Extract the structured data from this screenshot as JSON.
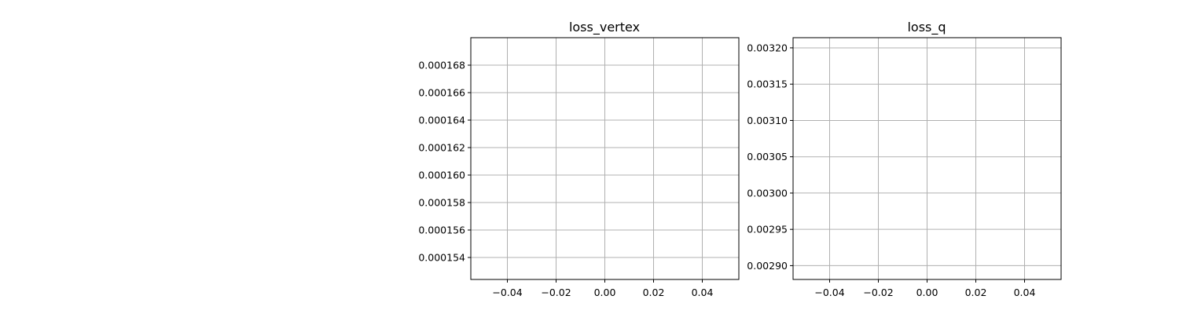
{
  "chart_data": [
    {
      "type": "line",
      "title": "loss_vertex",
      "xlabel": "",
      "ylabel": "",
      "xlim": [
        -0.055,
        0.055
      ],
      "ylim": [
        0.0001524,
        0.00017
      ],
      "xticks": [
        -0.04,
        -0.02,
        0.0,
        0.02,
        0.04
      ],
      "xtick_labels": [
        "−0.04",
        "−0.02",
        "0.00",
        "0.02",
        "0.04"
      ],
      "yticks": [
        0.000154,
        0.000156,
        0.000158,
        0.00016,
        0.000162,
        0.000164,
        0.000166,
        0.000168
      ],
      "ytick_labels": [
        "0.000154",
        "0.000156",
        "0.000158",
        "0.000160",
        "0.000162",
        "0.000164",
        "0.000166",
        "0.000168"
      ],
      "grid": true,
      "series": [
        {
          "x": [],
          "y": []
        }
      ]
    },
    {
      "type": "line",
      "title": "loss_q",
      "xlabel": "",
      "ylabel": "",
      "xlim": [
        -0.055,
        0.055
      ],
      "ylim": [
        0.002881,
        0.003214
      ],
      "xticks": [
        -0.04,
        -0.02,
        0.0,
        0.02,
        0.04
      ],
      "xtick_labels": [
        "−0.04",
        "−0.02",
        "0.00",
        "0.02",
        "0.04"
      ],
      "yticks": [
        0.0029,
        0.00295,
        0.003,
        0.00305,
        0.0031,
        0.00315,
        0.0032
      ],
      "ytick_labels": [
        "0.00290",
        "0.00295",
        "0.00300",
        "0.00305",
        "0.00310",
        "0.00315",
        "0.00320"
      ],
      "grid": true,
      "series": [
        {
          "x": [],
          "y": []
        }
      ]
    }
  ]
}
